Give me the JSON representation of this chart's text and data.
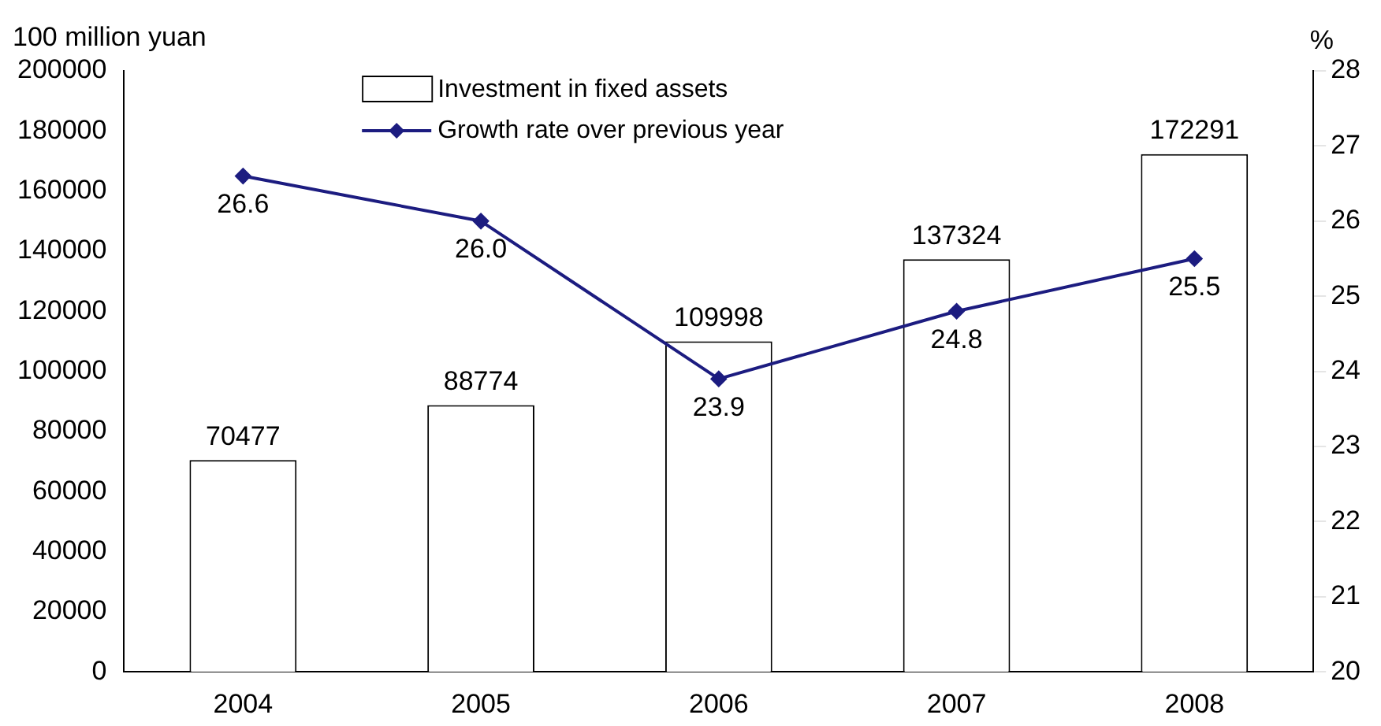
{
  "chart_data": {
    "type": "bar",
    "categories": [
      "2004",
      "2005",
      "2006",
      "2007",
      "2008"
    ],
    "series": [
      {
        "name": "Investment in fixed assets",
        "color": "#ffffff",
        "values": [
          70477,
          88774,
          109998,
          137324,
          172291
        ],
        "value_labels": [
          "70477",
          "88774",
          "109998",
          "137324",
          "172291"
        ]
      },
      {
        "name": "Growth rate over previous year",
        "type": "line",
        "axis": "y2",
        "color": "#1c1c80",
        "values": [
          26.6,
          26.0,
          23.9,
          24.8,
          25.5
        ],
        "value_labels": [
          "26.6",
          "26.0",
          "23.9",
          "24.8",
          "25.5"
        ]
      }
    ],
    "ylabel": "100 million yuan",
    "y2label": "%",
    "ylim": [
      0,
      200000
    ],
    "yticks": [
      0,
      20000,
      40000,
      60000,
      80000,
      100000,
      120000,
      140000,
      160000,
      180000,
      200000
    ],
    "y2lim": [
      20,
      28
    ],
    "y2ticks": [
      20,
      21,
      22,
      23,
      24,
      25,
      26,
      27,
      28
    ],
    "legend": "top",
    "marker": "diamond",
    "line_style": "solid"
  }
}
